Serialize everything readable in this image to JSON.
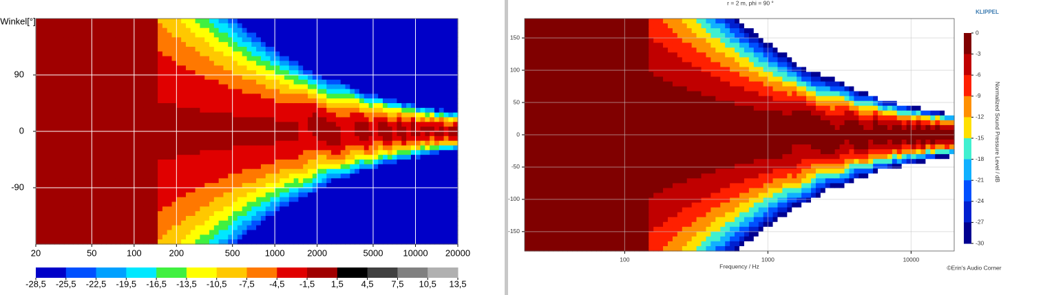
{
  "chart_data": [
    {
      "type": "heatmap",
      "ylabel": "Winkel[°]",
      "xlim": [
        20,
        20000
      ],
      "xscale": "log",
      "xticks": [
        20,
        50,
        100,
        200,
        500,
        1000,
        2000,
        5000,
        10000,
        20000
      ],
      "ylim": [
        -180,
        180
      ],
      "yticks": [
        90,
        0,
        -90
      ],
      "grid": true,
      "colorbar": {
        "ticks": [
          {
            "value": -28.5,
            "label": "-28,5"
          },
          {
            "value": -25.5,
            "label": "-25,5"
          },
          {
            "value": -22.5,
            "label": "-22,5"
          },
          {
            "value": -19.5,
            "label": "-19,5"
          },
          {
            "value": -16.5,
            "label": "-16,5"
          },
          {
            "value": -13.5,
            "label": "-13,5"
          },
          {
            "value": -10.5,
            "label": "-10,5"
          },
          {
            "value": -7.5,
            "label": "-7,5"
          },
          {
            "value": -4.5,
            "label": "-4,5"
          },
          {
            "value": -1.5,
            "label": "-1,5"
          },
          {
            "value": 1.5,
            "label": "1,5"
          },
          {
            "value": 4.5,
            "label": "4,5"
          },
          {
            "value": 7.5,
            "label": "7,5"
          },
          {
            "value": 10.5,
            "label": "10,5"
          },
          {
            "value": 13.5,
            "label": "13,5"
          }
        ],
        "colors": [
          "#0000c8",
          "#0050ff",
          "#00a0ff",
          "#00e8ff",
          "#40f040",
          "#ffff00",
          "#ffc800",
          "#ff7800",
          "#e00000",
          "#a00000",
          "#000000",
          "#404040",
          "#808080",
          "#b0b0b0"
        ]
      }
    },
    {
      "type": "heatmap",
      "title": "r = 2 m, phi = 90 °",
      "xlabel": "Frequency / Hz",
      "brand": "KLIPPEL",
      "credit": "©Erin's Audio Corner",
      "xlim": [
        20,
        20000
      ],
      "xscale": "log",
      "xticks": [
        100,
        1000,
        10000
      ],
      "ylim": [
        -180,
        180
      ],
      "yticks": [
        150,
        100,
        50,
        0,
        -50,
        -100,
        -150
      ],
      "grid": true,
      "colorbar": {
        "label": "Normalized Sound Pressure Level / dB",
        "ticks": [
          0,
          -3,
          -6,
          -9,
          -12,
          -15,
          -18,
          -21,
          -24,
          -27,
          -30
        ],
        "colors": [
          "#800000",
          "#c00000",
          "#ff2000",
          "#ff9000",
          "#ffe000",
          "#40f0d0",
          "#10b0ff",
          "#0050ff",
          "#0020d0",
          "#000090"
        ]
      }
    }
  ]
}
